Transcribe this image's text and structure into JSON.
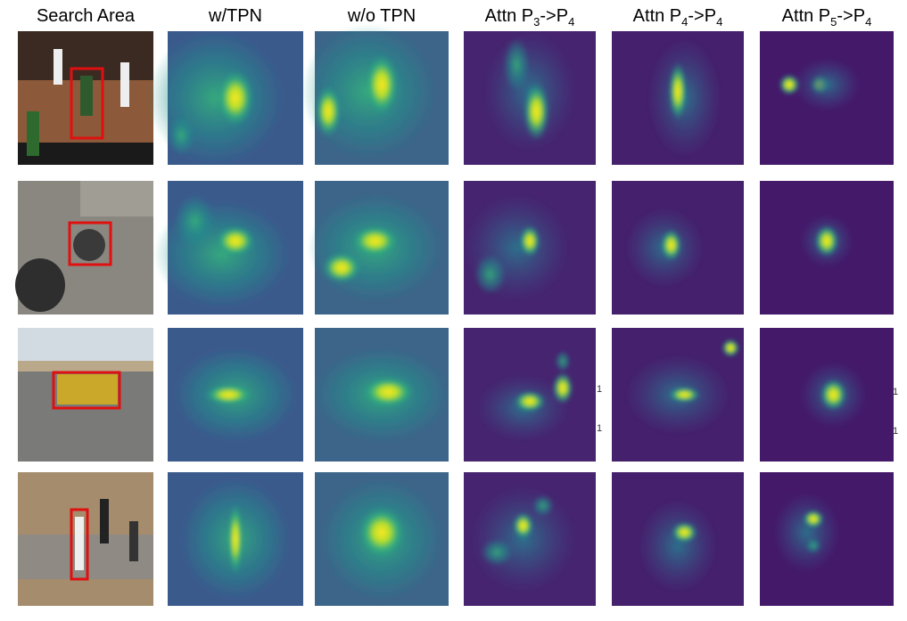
{
  "headers": [
    {
      "text": "Search Area"
    },
    {
      "text": "w/TPN"
    },
    {
      "text": "w/o TPN"
    },
    {
      "text": "Attn P",
      "sub": "3",
      "arrow": "->P",
      "sub2": "4"
    },
    {
      "text": "Attn P",
      "sub": "4",
      "arrow": "->P",
      "sub2": "4"
    },
    {
      "text": "Attn P",
      "sub": "5",
      "arrow": "->P",
      "sub2": "4"
    }
  ],
  "stray_marks": [
    "1",
    "1",
    "1",
    "1"
  ]
}
